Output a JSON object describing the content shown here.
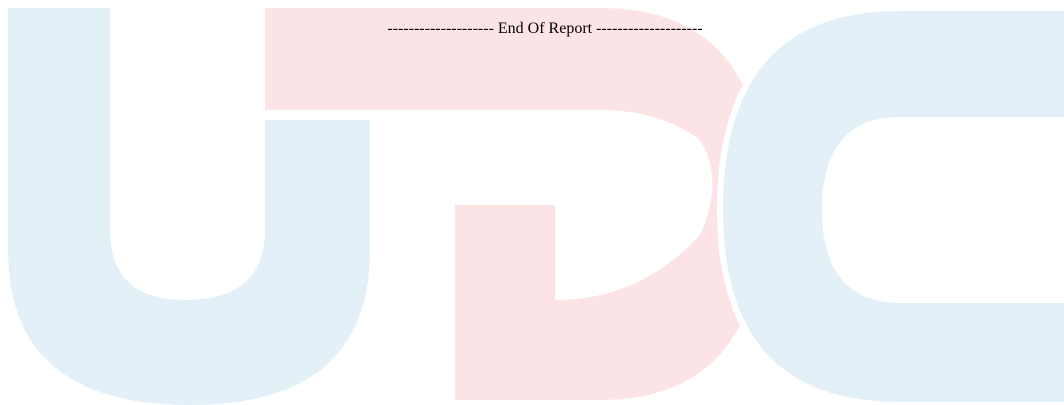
{
  "footer": {
    "text": "-------------------- End Of Report --------------------"
  }
}
